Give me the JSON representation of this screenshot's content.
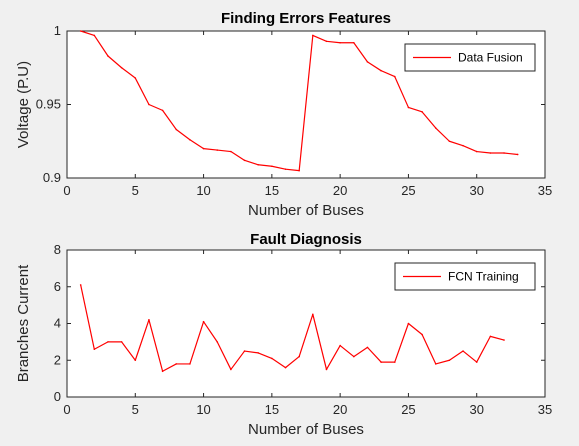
{
  "colors": {
    "background": "#f0f0f0",
    "plot_background": "#ffffff",
    "axis": "#262626",
    "series": "#ff0000"
  },
  "chart_data": [
    {
      "type": "line",
      "title": "Finding Errors Features",
      "xlabel": "Number of Buses",
      "ylabel": "Voltage (P.U)",
      "xlim": [
        0,
        35
      ],
      "ylim": [
        0.9,
        1
      ],
      "xticks": [
        0,
        5,
        10,
        15,
        20,
        25,
        30,
        35
      ],
      "yticks": [
        0.9,
        0.95,
        1
      ],
      "xtick_labels": [
        "0",
        "5",
        "10",
        "15",
        "20",
        "25",
        "30",
        "35"
      ],
      "ytick_labels": [
        "0.9",
        "0.95",
        "1"
      ],
      "grid": false,
      "legend_position": "top-right",
      "series": [
        {
          "name": "Data Fusion",
          "color": "#ff0000",
          "x": [
            1,
            2,
            3,
            4,
            5,
            6,
            7,
            8,
            9,
            10,
            11,
            12,
            13,
            14,
            15,
            16,
            17,
            18,
            19,
            20,
            21,
            22,
            23,
            24,
            25,
            26,
            27,
            28,
            29,
            30,
            31,
            32,
            33
          ],
          "y": [
            1.0,
            0.997,
            0.983,
            0.975,
            0.968,
            0.95,
            0.946,
            0.933,
            0.926,
            0.92,
            0.919,
            0.918,
            0.912,
            0.909,
            0.908,
            0.906,
            0.905,
            0.997,
            0.993,
            0.992,
            0.992,
            0.979,
            0.973,
            0.969,
            0.948,
            0.945,
            0.934,
            0.925,
            0.922,
            0.918,
            0.917,
            0.917,
            0.916
          ]
        }
      ]
    },
    {
      "type": "line",
      "title": "Fault Diagnosis",
      "xlabel": "Number of Buses",
      "ylabel": "Branches Current",
      "xlim": [
        0,
        35
      ],
      "ylim": [
        0,
        8
      ],
      "xticks": [
        0,
        5,
        10,
        15,
        20,
        25,
        30,
        35
      ],
      "yticks": [
        0,
        2,
        4,
        6,
        8
      ],
      "xtick_labels": [
        "0",
        "5",
        "10",
        "15",
        "20",
        "25",
        "30",
        "35"
      ],
      "ytick_labels": [
        "0",
        "2",
        "4",
        "6",
        "8"
      ],
      "grid": false,
      "legend_position": "top-right",
      "series": [
        {
          "name": "FCN Training",
          "color": "#ff0000",
          "x": [
            1,
            2,
            3,
            4,
            5,
            6,
            7,
            8,
            9,
            10,
            11,
            12,
            13,
            14,
            15,
            16,
            17,
            18,
            19,
            20,
            21,
            22,
            23,
            24,
            25,
            26,
            27,
            28,
            29,
            30,
            31,
            32
          ],
          "y": [
            6.1,
            2.6,
            3.0,
            3.0,
            2.0,
            4.2,
            1.4,
            1.8,
            1.8,
            4.1,
            3.0,
            1.5,
            2.5,
            2.4,
            2.1,
            1.6,
            2.2,
            4.5,
            1.5,
            2.8,
            2.2,
            2.7,
            1.9,
            1.9,
            4.0,
            3.4,
            1.8,
            2.0,
            2.5,
            1.9,
            3.3,
            3.1
          ]
        }
      ]
    }
  ]
}
